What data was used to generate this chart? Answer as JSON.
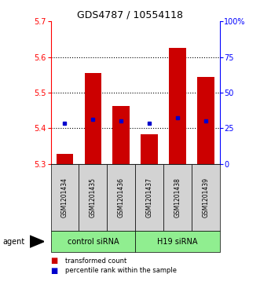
{
  "title": "GDS4787 / 10554118",
  "samples": [
    "GSM1201434",
    "GSM1201435",
    "GSM1201436",
    "GSM1201437",
    "GSM1201438",
    "GSM1201439"
  ],
  "group_labels": [
    "control siRNA",
    "H19 siRNA"
  ],
  "bar_values": [
    5.327,
    5.555,
    5.463,
    5.384,
    5.625,
    5.545
  ],
  "bar_bottom": 5.3,
  "percentile_values": [
    5.415,
    5.425,
    5.42,
    5.415,
    5.43,
    5.42
  ],
  "ylim_left": [
    5.3,
    5.7
  ],
  "ylim_right": [
    0,
    100
  ],
  "yticks_left": [
    5.3,
    5.4,
    5.5,
    5.6,
    5.7
  ],
  "yticks_right": [
    0,
    25,
    50,
    75,
    100
  ],
  "ytick_labels_right": [
    "0",
    "25",
    "50",
    "75",
    "100%"
  ],
  "grid_values": [
    5.4,
    5.5,
    5.6
  ],
  "bar_color": "#CC0000",
  "dot_color": "#0000CC",
  "legend_bar_label": "transformed count",
  "legend_dot_label": "percentile rank within the sample",
  "agent_label": "agent",
  "label_box_color": "#d3d3d3",
  "group_box_color": "#90EE90",
  "bar_width": 0.6,
  "title_fontsize": 9,
  "tick_fontsize": 7,
  "sample_fontsize": 5.5,
  "group_fontsize": 7,
  "legend_fontsize": 6,
  "agent_fontsize": 7
}
